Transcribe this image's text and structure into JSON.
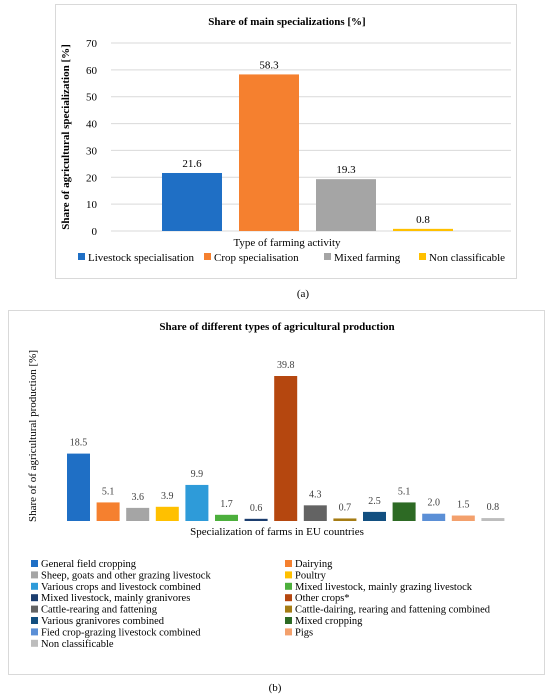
{
  "panel_labels": {
    "a": "(a)",
    "b": "(b)"
  },
  "chart_data": [
    {
      "type": "bar",
      "title": "Share of main specializations [%]",
      "xlabel": "Type of farming activity",
      "ylabel": "Share of agricultural specialization [%]",
      "ylim": [
        0,
        70
      ],
      "yticks": [
        0,
        10,
        20,
        30,
        40,
        50,
        60,
        70
      ],
      "grid": true,
      "legend": "bottom",
      "series": [
        {
          "name": "Livestock specialisation",
          "value": 21.6,
          "label": "21.6",
          "color": "#1f6fc5"
        },
        {
          "name": "Crop specialisation",
          "value": 58.3,
          "label": "58.3",
          "color": "#f5802f"
        },
        {
          "name": "Mixed farming",
          "value": 19.3,
          "label": "19.3",
          "color": "#a5a5a5"
        },
        {
          "name": "Non classificable",
          "value": 0.8,
          "label": "0.8",
          "color": "#ffc000"
        }
      ]
    },
    {
      "type": "bar",
      "title": "Share of different types of agricultural production",
      "xlabel": "Specialization of farms in EU countries",
      "ylabel": "Share of of agricultural production [%]",
      "ylim": [
        0,
        45
      ],
      "grid": false,
      "legend": "bottom",
      "series": [
        {
          "name": "General field cropping",
          "value": 18.5,
          "label": "18.5",
          "color": "#1f6fc5"
        },
        {
          "name": "Dairying",
          "value": 5.1,
          "label": "5.1",
          "color": "#f5802f"
        },
        {
          "name": "Sheep, goats and other grazing livestock",
          "value": 3.6,
          "label": "3.6",
          "color": "#a5a5a5"
        },
        {
          "name": "Poultry",
          "value": 3.9,
          "label": "3.9",
          "color": "#ffc000"
        },
        {
          "name": "Various crops and livestock combined",
          "value": 9.9,
          "label": "9.9",
          "color": "#2e9bd9"
        },
        {
          "name": "Mixed livestock, mainly grazing livestock",
          "value": 1.7,
          "label": "1.7",
          "color": "#4caf3c"
        },
        {
          "name": "Mixed livestock, mainly granivores",
          "value": 0.6,
          "label": "0.6",
          "color": "#1b3d6e"
        },
        {
          "name": "Other crops*",
          "value": 39.8,
          "label": "39.8",
          "color": "#b5470f"
        },
        {
          "name": "Cattle-rearing and fattening",
          "value": 4.3,
          "label": "4.3",
          "color": "#636363"
        },
        {
          "name": "Cattle-dairing, rearing and fattening combined",
          "value": 0.7,
          "label": "0.7",
          "color": "#a57c14"
        },
        {
          "name": "Various granivores combined",
          "value": 2.5,
          "label": "2.5",
          "color": "#124f80"
        },
        {
          "name": "Mixed cropping",
          "value": 5.1,
          "label": "5.1",
          "color": "#2d6a24"
        },
        {
          "name": "Fied crop-grazing livestock combined",
          "value": 2.0,
          "label": "2.0",
          "color": "#5b8fd6"
        },
        {
          "name": "Pigs",
          "value": 1.5,
          "label": "1.5",
          "color": "#f3a06c"
        },
        {
          "name": "Non classificable",
          "value": 0.8,
          "label": "0.8",
          "color": "#bdbdbd"
        }
      ]
    }
  ]
}
